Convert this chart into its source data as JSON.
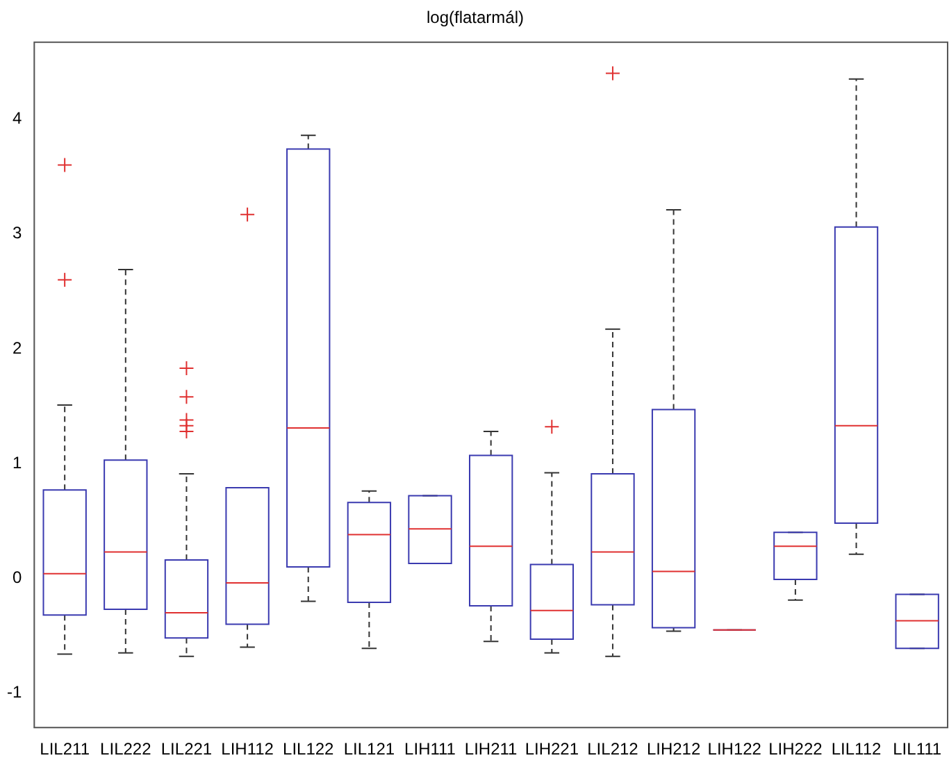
{
  "chart_data": {
    "type": "box",
    "title": "log(flatarmál)",
    "categories": [
      "LIL211",
      "LIL222",
      "LIL221",
      "LIH112",
      "LIL122",
      "LIL121",
      "LIH111",
      "LIH211",
      "LIH221",
      "LIL212",
      "LIH212",
      "LIH122",
      "LIH222",
      "LIL112",
      "LIL111"
    ],
    "boxes": [
      {
        "low": -0.66,
        "q1": -0.32,
        "median": 0.04,
        "q3": 0.77,
        "high": 1.51,
        "outliers": [
          3.6,
          2.6
        ]
      },
      {
        "low": -0.65,
        "q1": -0.27,
        "median": 0.23,
        "q3": 1.03,
        "high": 2.69
      },
      {
        "low": -0.68,
        "q1": -0.52,
        "median": -0.3,
        "q3": 0.16,
        "high": 0.91,
        "outliers": [
          1.83,
          1.58,
          1.38,
          1.33,
          1.28
        ]
      },
      {
        "low": -0.6,
        "q1": -0.4,
        "median": -0.04,
        "q3": 0.79,
        "high": 0.79,
        "outliers": [
          3.17
        ]
      },
      {
        "low": -0.2,
        "q1": 0.1,
        "median": 1.31,
        "q3": 3.74,
        "high": 3.86
      },
      {
        "low": -0.61,
        "q1": -0.21,
        "median": 0.38,
        "q3": 0.66,
        "high": 0.76
      },
      {
        "low": 0.13,
        "q1": 0.13,
        "median": 0.43,
        "q3": 0.72,
        "high": 0.72
      },
      {
        "low": -0.55,
        "q1": -0.24,
        "median": 0.28,
        "q3": 1.07,
        "high": 1.28
      },
      {
        "low": -0.65,
        "q1": -0.53,
        "median": -0.28,
        "q3": 0.12,
        "high": 0.92,
        "outliers": [
          1.32
        ]
      },
      {
        "low": -0.68,
        "q1": -0.23,
        "median": 0.23,
        "q3": 0.91,
        "high": 2.17,
        "outliers": [
          4.4
        ]
      },
      {
        "low": -0.46,
        "q1": -0.43,
        "median": 0.06,
        "q3": 1.47,
        "high": 3.21
      },
      {
        "low": -0.45,
        "q1": -0.45,
        "median": -0.45,
        "q3": -0.45,
        "high": -0.45
      },
      {
        "low": -0.19,
        "q1": -0.01,
        "median": 0.28,
        "q3": 0.4,
        "high": 0.4
      },
      {
        "low": 0.21,
        "q1": 0.48,
        "median": 1.33,
        "q3": 3.06,
        "high": 4.35
      },
      {
        "low": -0.61,
        "q1": -0.61,
        "median": -0.37,
        "q3": -0.14,
        "high": -0.14
      }
    ],
    "ylim": [
      -1.3,
      4.67
    ],
    "yticks": [
      -1,
      0,
      1,
      2,
      3,
      4
    ],
    "grid": false,
    "legend": false
  }
}
